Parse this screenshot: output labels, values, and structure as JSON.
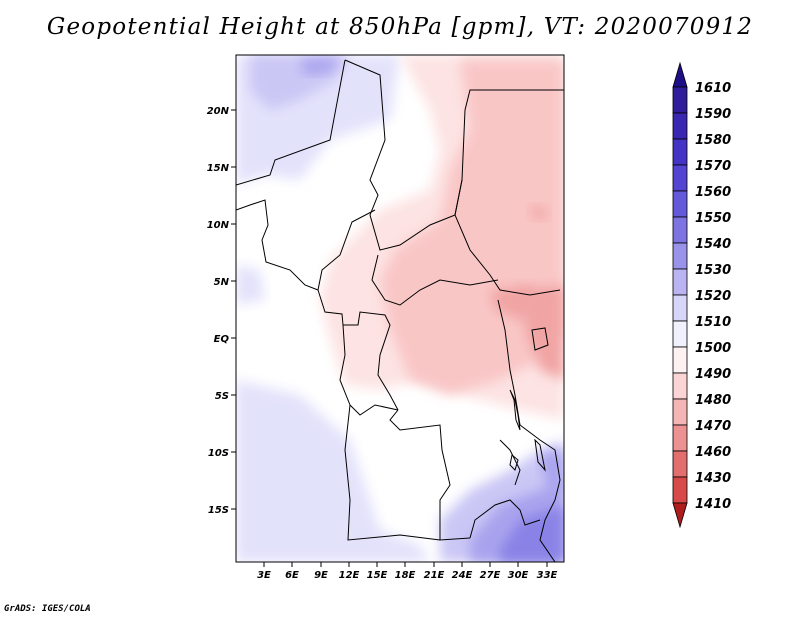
{
  "title": "Geopotential Height at 850hPa [gpm], VT: 2020070912",
  "credit": "GrADS: IGES/COLA",
  "map": {
    "variable": "Geopotential Height",
    "level": "850hPa",
    "units": "gpm",
    "valid_time": "2020070912",
    "lat_ticks": [
      "20N",
      "15N",
      "10N",
      "5N",
      "EQ",
      "5S",
      "10S",
      "15S"
    ],
    "lon_ticks": [
      "3E",
      "6E",
      "9E",
      "12E",
      "15E",
      "18E",
      "21E",
      "24E",
      "27E",
      "30E",
      "33E"
    ]
  },
  "colorbar": {
    "levels": [
      {
        "label": "1610",
        "color": "#2b1990"
      },
      {
        "label": "1590",
        "color": "#3421a6"
      },
      {
        "label": "1580",
        "color": "#3e2cbd"
      },
      {
        "label": "1570",
        "color": "#4a3acd"
      },
      {
        "label": "1560",
        "color": "#5b4ed6"
      },
      {
        "label": "1550",
        "color": "#6f64df"
      },
      {
        "label": "1540",
        "color": "#8a82e6"
      },
      {
        "label": "1530",
        "color": "#a9a3ee"
      },
      {
        "label": "1520",
        "color": "#cac7f5"
      },
      {
        "label": "1510",
        "color": "#e3e2fb"
      },
      {
        "label": "1500",
        "color": "#ffffff"
      },
      {
        "label": "1490",
        "color": "#fde3e3"
      },
      {
        "label": "1480",
        "color": "#f9c6c6"
      },
      {
        "label": "1470",
        "color": "#f1a4a4"
      },
      {
        "label": "1460",
        "color": "#e88080"
      },
      {
        "label": "1430",
        "color": "#de5c5c"
      },
      {
        "label": "1410",
        "color": "#d13838"
      }
    ],
    "top_color": "#1e0f86",
    "bottom_color": "#b01d1d"
  }
}
